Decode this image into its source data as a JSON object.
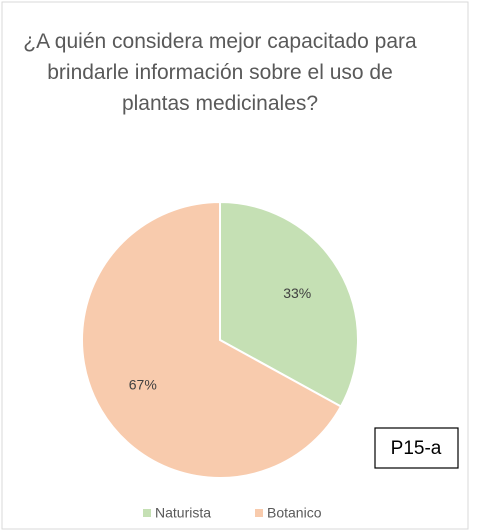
{
  "chart_data": {
    "type": "pie",
    "title": "¿A quién considera mejor capacitado para brindarle información sobre el uso de plantas medicinales?",
    "categories": [
      "Naturista",
      "Botanico"
    ],
    "values": [
      33,
      67
    ],
    "value_labels": [
      "33%",
      "67%"
    ],
    "colors": [
      "#c5e0b4",
      "#f8cbad"
    ],
    "legend": "bottom",
    "annotations": [
      "P15-a"
    ]
  }
}
